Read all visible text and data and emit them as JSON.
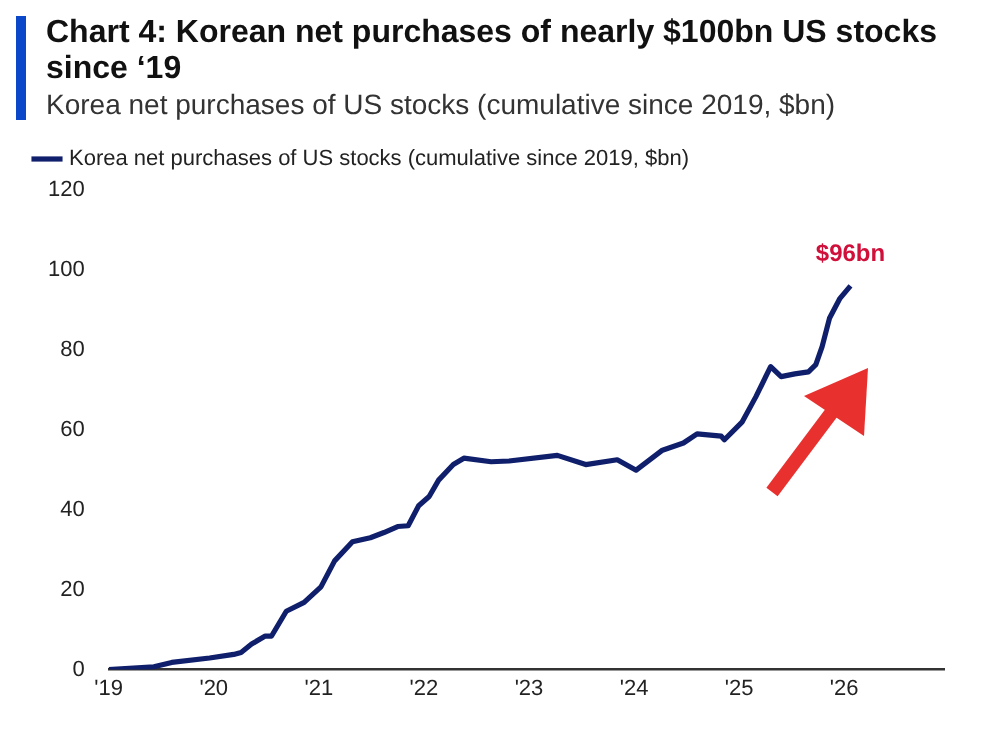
{
  "chart_data": {
    "type": "line",
    "title": "Chart 4: Korean net purchases of nearly $100bn US stocks since ‘19",
    "subtitle": "Korea net purchases of US stocks (cumulative since 2019, $bn)",
    "series": [
      {
        "name": "Korea net purchases of US stocks (cumulative since 2019, $bn)",
        "color": "#0f1f6b",
        "x": [
          2019.0,
          2019.43,
          2019.6,
          2019.96,
          2020.19,
          2020.26,
          2020.36,
          2020.49,
          2020.55,
          2020.69,
          2020.86,
          2021.02,
          2021.15,
          2021.32,
          2021.49,
          2021.62,
          2021.75,
          2021.85,
          2021.95,
          2022.05,
          2022.14,
          2022.28,
          2022.38,
          2022.64,
          2022.81,
          2023.27,
          2023.54,
          2023.84,
          2024.02,
          2024.27,
          2024.47,
          2024.6,
          2024.83,
          2024.86,
          2025.03,
          2025.16,
          2025.3,
          2025.4,
          2025.53,
          2025.66,
          2025.73,
          2025.79,
          2025.86,
          2025.96,
          2026.06
        ],
        "values": [
          0,
          0.7,
          1.8,
          2.9,
          3.8,
          4.3,
          6.4,
          8.4,
          8.4,
          14.6,
          16.8,
          20.7,
          27.2,
          32,
          33,
          34.3,
          35.8,
          36,
          41,
          43.3,
          47.4,
          51.3,
          52.9,
          52,
          52.2,
          53.6,
          51.3,
          52.5,
          49.9,
          54.9,
          56.7,
          59,
          58.4,
          57.5,
          62,
          68.3,
          75.8,
          73.3,
          74,
          74.5,
          76.3,
          80.8,
          87.9,
          92.9,
          96
        ]
      }
    ],
    "annotations": [
      {
        "text": "$96bn",
        "x": 2026.06,
        "y": 96
      }
    ],
    "xlim": [
      2019,
      2026.95
    ],
    "xticks": [
      {
        "value": 2019,
        "label": "'19"
      },
      {
        "value": 2020,
        "label": "'20"
      },
      {
        "value": 2021,
        "label": "'21"
      },
      {
        "value": 2022,
        "label": "'22"
      },
      {
        "value": 2023,
        "label": "'23"
      },
      {
        "value": 2024,
        "label": "'24"
      },
      {
        "value": 2025,
        "label": "'25"
      },
      {
        "value": 2026,
        "label": "'26"
      }
    ],
    "ylim": [
      0,
      120
    ],
    "yticks": [
      0,
      20,
      40,
      60,
      80,
      100,
      120
    ],
    "grid": false,
    "legend": "top left",
    "marker": "none",
    "line_style": "solid"
  }
}
